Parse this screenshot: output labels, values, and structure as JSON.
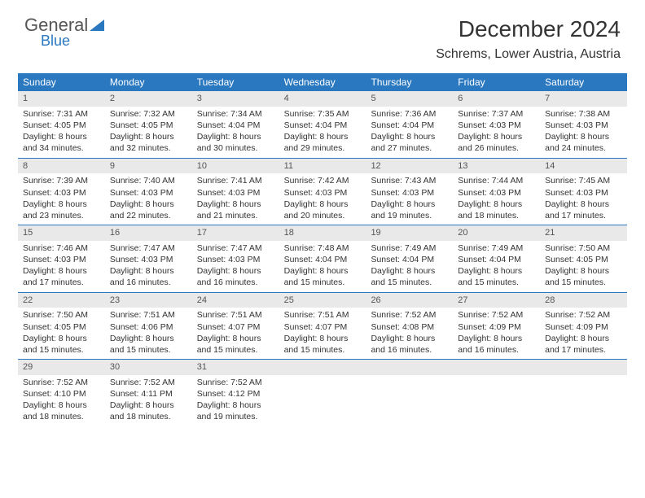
{
  "logo": {
    "general": "General",
    "blue": "Blue"
  },
  "title": "December 2024",
  "location": "Schrems, Lower Austria, Austria",
  "colors": {
    "header_bg": "#2a78c0",
    "header_fg": "#ffffff",
    "daynum_bg": "#e9e9e9",
    "row_border": "#2a78c0",
    "text": "#333333"
  },
  "weekdays": [
    "Sunday",
    "Monday",
    "Tuesday",
    "Wednesday",
    "Thursday",
    "Friday",
    "Saturday"
  ],
  "labels": {
    "sunrise": "Sunrise:",
    "sunset": "Sunset:",
    "daylight_prefix": "Daylight:",
    "hours": "hours",
    "and": "and",
    "minutes": "minutes."
  },
  "days": [
    {
      "n": 1,
      "sunrise": "7:31 AM",
      "sunset": "4:05 PM",
      "dh": 8,
      "dm": 34
    },
    {
      "n": 2,
      "sunrise": "7:32 AM",
      "sunset": "4:05 PM",
      "dh": 8,
      "dm": 32
    },
    {
      "n": 3,
      "sunrise": "7:34 AM",
      "sunset": "4:04 PM",
      "dh": 8,
      "dm": 30
    },
    {
      "n": 4,
      "sunrise": "7:35 AM",
      "sunset": "4:04 PM",
      "dh": 8,
      "dm": 29
    },
    {
      "n": 5,
      "sunrise": "7:36 AM",
      "sunset": "4:04 PM",
      "dh": 8,
      "dm": 27
    },
    {
      "n": 6,
      "sunrise": "7:37 AM",
      "sunset": "4:03 PM",
      "dh": 8,
      "dm": 26
    },
    {
      "n": 7,
      "sunrise": "7:38 AM",
      "sunset": "4:03 PM",
      "dh": 8,
      "dm": 24
    },
    {
      "n": 8,
      "sunrise": "7:39 AM",
      "sunset": "4:03 PM",
      "dh": 8,
      "dm": 23
    },
    {
      "n": 9,
      "sunrise": "7:40 AM",
      "sunset": "4:03 PM",
      "dh": 8,
      "dm": 22
    },
    {
      "n": 10,
      "sunrise": "7:41 AM",
      "sunset": "4:03 PM",
      "dh": 8,
      "dm": 21
    },
    {
      "n": 11,
      "sunrise": "7:42 AM",
      "sunset": "4:03 PM",
      "dh": 8,
      "dm": 20
    },
    {
      "n": 12,
      "sunrise": "7:43 AM",
      "sunset": "4:03 PM",
      "dh": 8,
      "dm": 19
    },
    {
      "n": 13,
      "sunrise": "7:44 AM",
      "sunset": "4:03 PM",
      "dh": 8,
      "dm": 18
    },
    {
      "n": 14,
      "sunrise": "7:45 AM",
      "sunset": "4:03 PM",
      "dh": 8,
      "dm": 17
    },
    {
      "n": 15,
      "sunrise": "7:46 AM",
      "sunset": "4:03 PM",
      "dh": 8,
      "dm": 17
    },
    {
      "n": 16,
      "sunrise": "7:47 AM",
      "sunset": "4:03 PM",
      "dh": 8,
      "dm": 16
    },
    {
      "n": 17,
      "sunrise": "7:47 AM",
      "sunset": "4:03 PM",
      "dh": 8,
      "dm": 16
    },
    {
      "n": 18,
      "sunrise": "7:48 AM",
      "sunset": "4:04 PM",
      "dh": 8,
      "dm": 15
    },
    {
      "n": 19,
      "sunrise": "7:49 AM",
      "sunset": "4:04 PM",
      "dh": 8,
      "dm": 15
    },
    {
      "n": 20,
      "sunrise": "7:49 AM",
      "sunset": "4:04 PM",
      "dh": 8,
      "dm": 15
    },
    {
      "n": 21,
      "sunrise": "7:50 AM",
      "sunset": "4:05 PM",
      "dh": 8,
      "dm": 15
    },
    {
      "n": 22,
      "sunrise": "7:50 AM",
      "sunset": "4:05 PM",
      "dh": 8,
      "dm": 15
    },
    {
      "n": 23,
      "sunrise": "7:51 AM",
      "sunset": "4:06 PM",
      "dh": 8,
      "dm": 15
    },
    {
      "n": 24,
      "sunrise": "7:51 AM",
      "sunset": "4:07 PM",
      "dh": 8,
      "dm": 15
    },
    {
      "n": 25,
      "sunrise": "7:51 AM",
      "sunset": "4:07 PM",
      "dh": 8,
      "dm": 15
    },
    {
      "n": 26,
      "sunrise": "7:52 AM",
      "sunset": "4:08 PM",
      "dh": 8,
      "dm": 16
    },
    {
      "n": 27,
      "sunrise": "7:52 AM",
      "sunset": "4:09 PM",
      "dh": 8,
      "dm": 16
    },
    {
      "n": 28,
      "sunrise": "7:52 AM",
      "sunset": "4:09 PM",
      "dh": 8,
      "dm": 17
    },
    {
      "n": 29,
      "sunrise": "7:52 AM",
      "sunset": "4:10 PM",
      "dh": 8,
      "dm": 18
    },
    {
      "n": 30,
      "sunrise": "7:52 AM",
      "sunset": "4:11 PM",
      "dh": 8,
      "dm": 18
    },
    {
      "n": 31,
      "sunrise": "7:52 AM",
      "sunset": "4:12 PM",
      "dh": 8,
      "dm": 19
    }
  ]
}
